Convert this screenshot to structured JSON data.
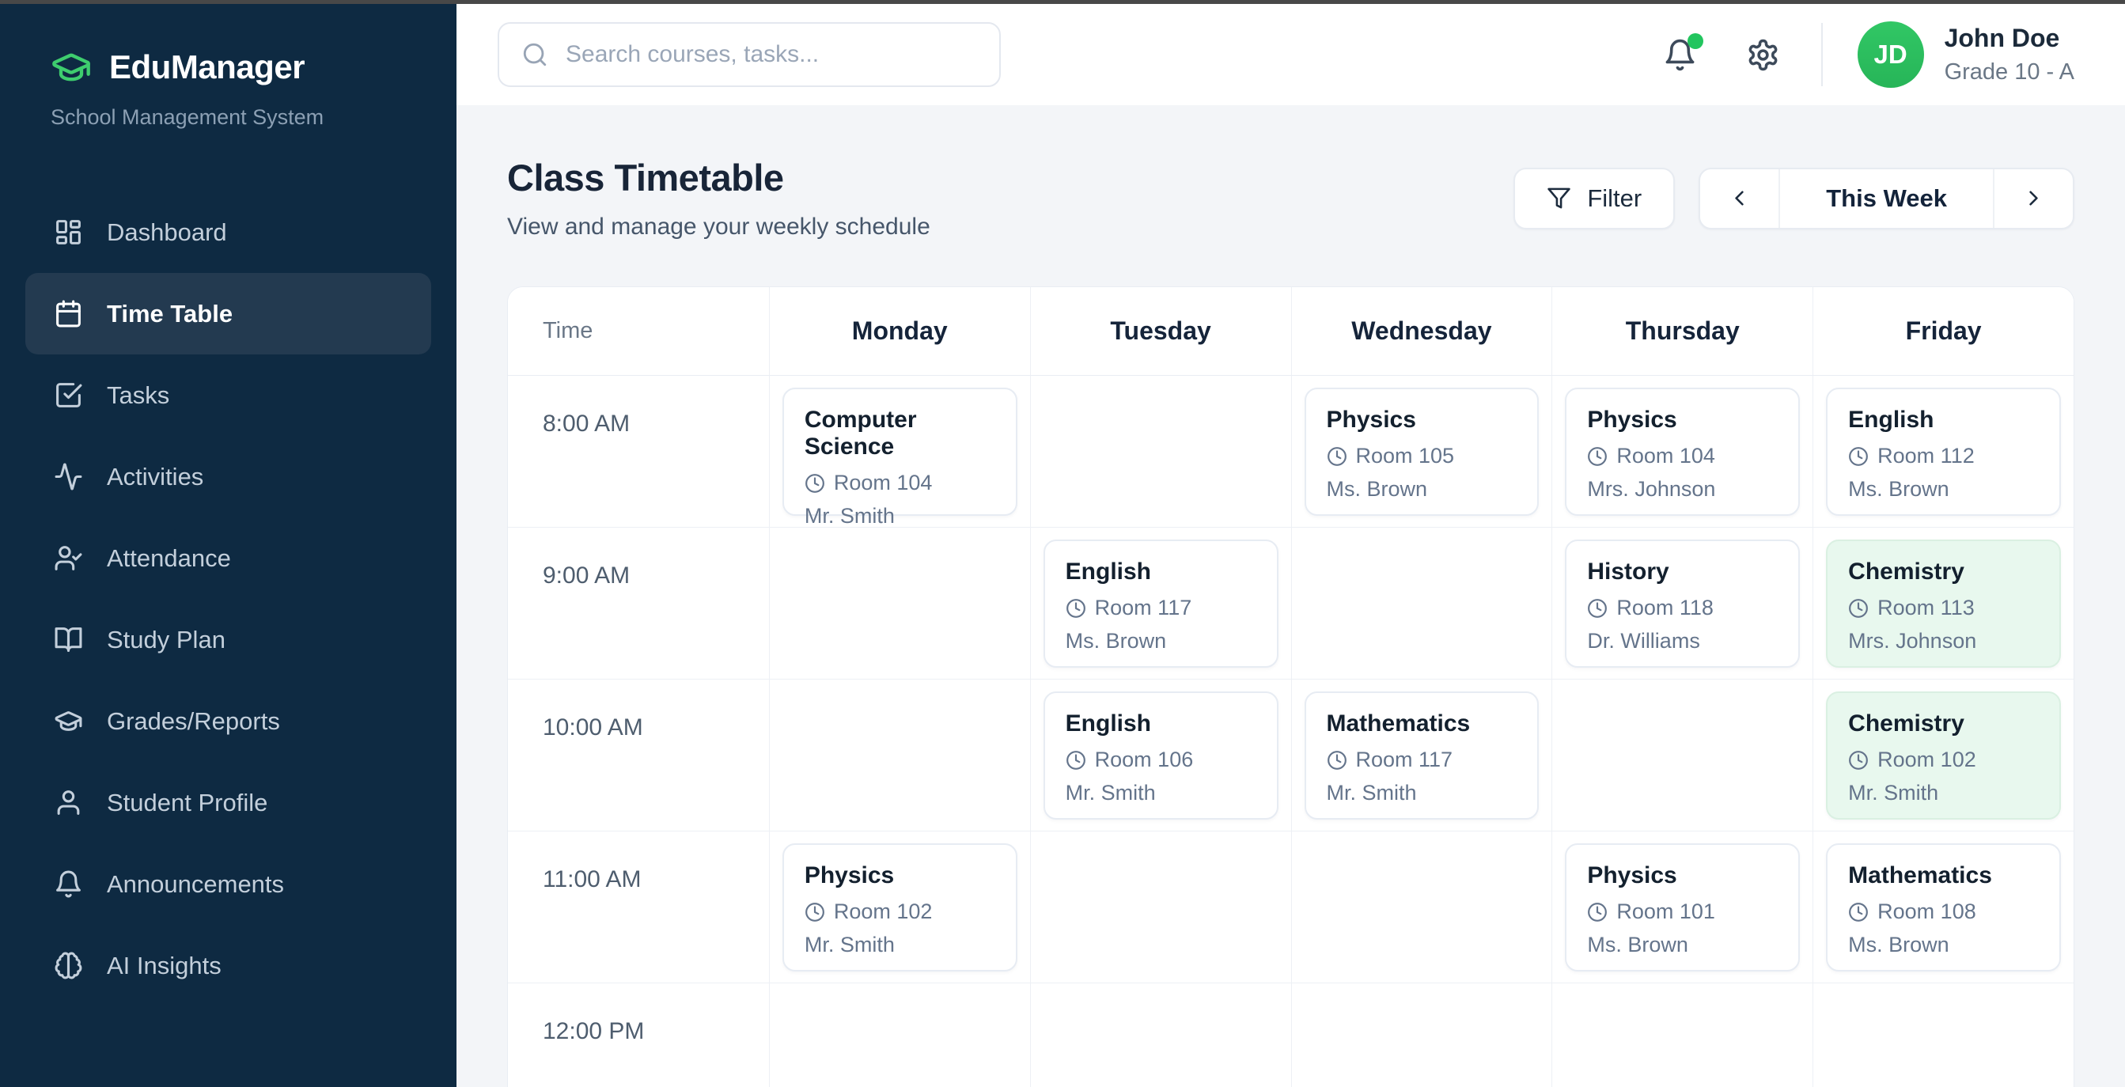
{
  "app": {
    "name": "EduManager",
    "tagline": "School Management System",
    "logo_icon": "graduation-cap-icon"
  },
  "sidebar": {
    "items": [
      {
        "label": "Dashboard",
        "icon": "dashboard-icon",
        "active": false
      },
      {
        "label": "Time Table",
        "icon": "calendar-icon",
        "active": true
      },
      {
        "label": "Tasks",
        "icon": "check-square-icon",
        "active": false
      },
      {
        "label": "Activities",
        "icon": "activity-icon",
        "active": false
      },
      {
        "label": "Attendance",
        "icon": "user-check-icon",
        "active": false
      },
      {
        "label": "Study Plan",
        "icon": "book-open-icon",
        "active": false
      },
      {
        "label": "Grades/Reports",
        "icon": "graduation-cap-icon",
        "active": false
      },
      {
        "label": "Student Profile",
        "icon": "user-icon",
        "active": false
      },
      {
        "label": "Announcements",
        "icon": "bell-icon",
        "active": false
      },
      {
        "label": "AI Insights",
        "icon": "brain-icon",
        "active": false
      }
    ]
  },
  "header": {
    "search": {
      "placeholder": "Search courses, tasks...",
      "icon": "search-icon"
    },
    "notifications": {
      "icon": "bell-icon",
      "has_unread": true
    },
    "settings_icon": "gear-icon",
    "user": {
      "initials": "JD",
      "name": "John Doe",
      "grade": "Grade 10 - A"
    }
  },
  "page": {
    "title": "Class Timetable",
    "subtitle": "View and manage your weekly schedule",
    "filter_label": "Filter",
    "filter_icon": "funnel-icon",
    "week_label": "This Week"
  },
  "timetable": {
    "time_column_header": "Time",
    "days": [
      "Monday",
      "Tuesday",
      "Wednesday",
      "Thursday",
      "Friday"
    ],
    "room_icon": "clock-icon",
    "rows": [
      {
        "time": "8:00 AM",
        "cells": [
          {
            "subject": "Computer Science",
            "room": "Room 104",
            "teacher": "Mr. Smith",
            "highlight": false
          },
          null,
          {
            "subject": "Physics",
            "room": "Room 105",
            "teacher": "Ms. Brown",
            "highlight": false
          },
          {
            "subject": "Physics",
            "room": "Room 104",
            "teacher": "Mrs. Johnson",
            "highlight": false
          },
          {
            "subject": "English",
            "room": "Room 112",
            "teacher": "Ms. Brown",
            "highlight": false
          }
        ]
      },
      {
        "time": "9:00 AM",
        "cells": [
          null,
          {
            "subject": "English",
            "room": "Room 117",
            "teacher": "Ms. Brown",
            "highlight": false
          },
          null,
          {
            "subject": "History",
            "room": "Room 118",
            "teacher": "Dr. Williams",
            "highlight": false
          },
          {
            "subject": "Chemistry",
            "room": "Room 113",
            "teacher": "Mrs. Johnson",
            "highlight": true
          }
        ]
      },
      {
        "time": "10:00 AM",
        "cells": [
          null,
          {
            "subject": "English",
            "room": "Room 106",
            "teacher": "Mr. Smith",
            "highlight": false
          },
          {
            "subject": "Mathematics",
            "room": "Room 117",
            "teacher": "Mr. Smith",
            "highlight": false
          },
          null,
          {
            "subject": "Chemistry",
            "room": "Room 102",
            "teacher": "Mr. Smith",
            "highlight": true
          }
        ]
      },
      {
        "time": "11:00 AM",
        "cells": [
          {
            "subject": "Physics",
            "room": "Room 102",
            "teacher": "Mr. Smith",
            "highlight": false
          },
          null,
          null,
          {
            "subject": "Physics",
            "room": "Room 101",
            "teacher": "Ms. Brown",
            "highlight": false
          },
          {
            "subject": "Mathematics",
            "room": "Room 108",
            "teacher": "Ms. Brown",
            "highlight": false
          }
        ]
      },
      {
        "time": "12:00 PM",
        "cells": [
          null,
          null,
          null,
          null,
          null
        ]
      }
    ]
  },
  "colors": {
    "sidebar_bg": "#0e2a42",
    "accent_green": "#2dbd5e",
    "notification_dot": "#22c55e",
    "highlight_card_bg": "#e8f8ee"
  }
}
